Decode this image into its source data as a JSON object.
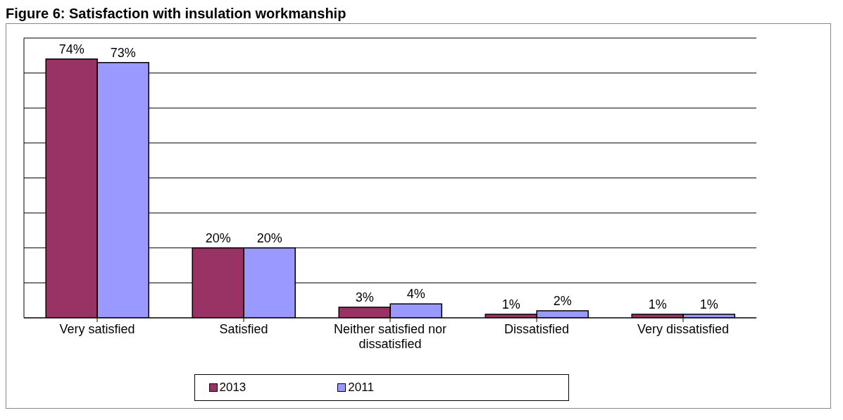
{
  "chart_data": {
    "type": "bar",
    "title": "Figure 6: Satisfaction with insulation workmanship",
    "categories": [
      "Very satisfied",
      "Satisfied",
      "Neither satisfied nor dissatisfied",
      "Dissatisfied",
      "Very dissatisfied"
    ],
    "series": [
      {
        "name": "2013",
        "color": "#993366",
        "values": [
          74,
          20,
          3,
          1,
          1
        ],
        "value_labels": [
          "74%",
          "20%",
          "3%",
          "1%",
          "1%"
        ]
      },
      {
        "name": "2011",
        "color": "#9999ff",
        "values": [
          73,
          20,
          4,
          2,
          1
        ],
        "value_labels": [
          "73%",
          "20%",
          "4%",
          "2%",
          "1%"
        ]
      }
    ],
    "ylim": [
      0,
      80
    ],
    "yticks": [
      {
        "value": 0,
        "label": null
      },
      {
        "value": 10,
        "label": null
      },
      {
        "value": 20,
        "label": null
      },
      {
        "value": 30,
        "label": null
      },
      {
        "value": 40,
        "label": null
      },
      {
        "value": 50,
        "label": null
      },
      {
        "value": 60,
        "label": null
      },
      {
        "value": 70,
        "label": null
      },
      {
        "value": 80,
        "label": null
      }
    ],
    "tick_labels": "x",
    "grid": "y",
    "legend": "bottom"
  }
}
